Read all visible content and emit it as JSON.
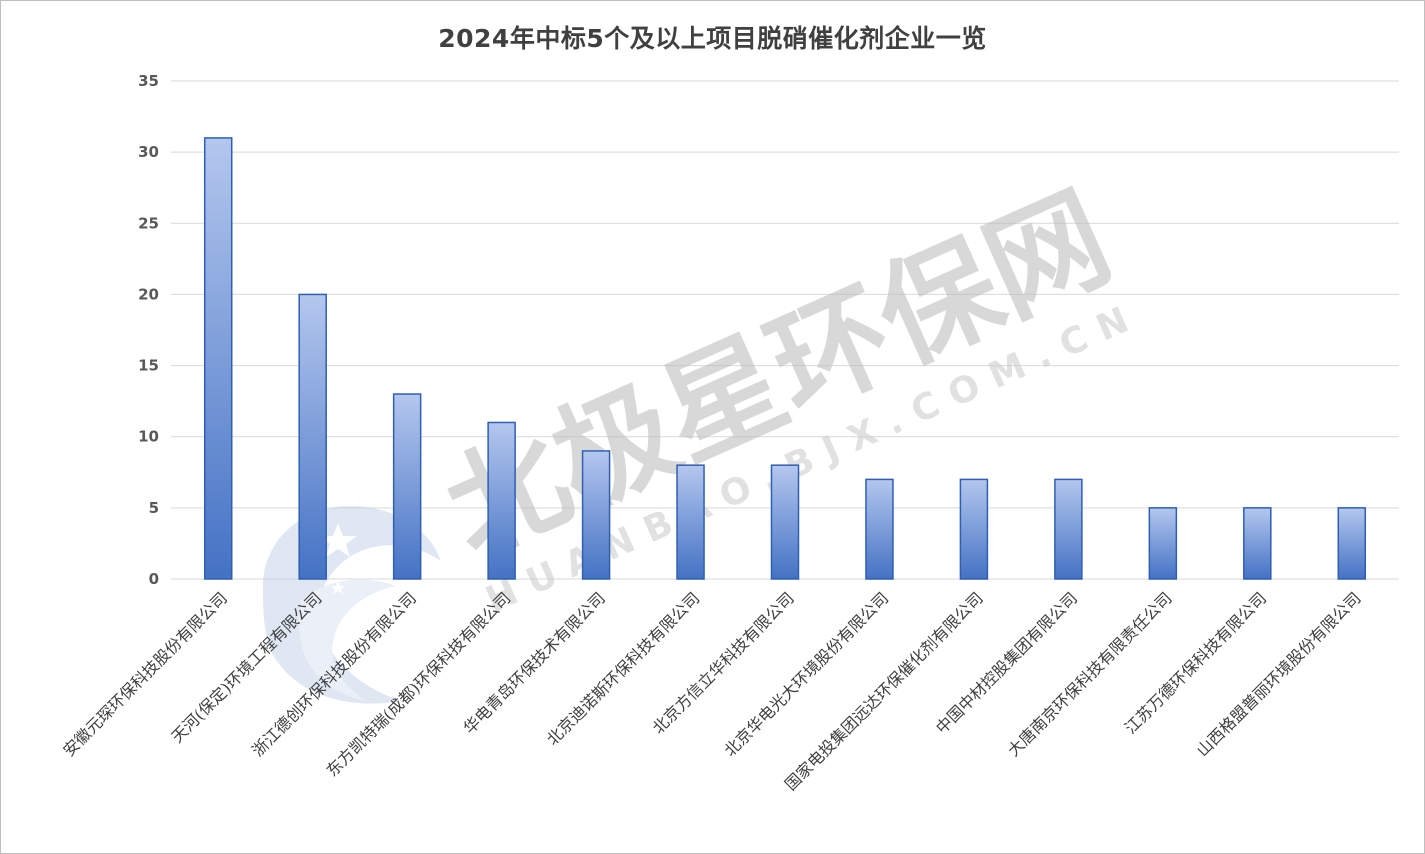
{
  "chart_data": {
    "type": "bar",
    "title": "2024年中标5个及以上项目脱硝催化剂企业一览",
    "xlabel": "",
    "ylabel": "",
    "ylim": [
      0,
      35
    ],
    "yticks": [
      0,
      5,
      10,
      15,
      20,
      25,
      30,
      35
    ],
    "grid": true,
    "categories": [
      "安徽元琛环保科技股份有限公司",
      "天河(保定)环境工程有限公司",
      "浙江德创环保科技股份有限公司",
      "东方凯特瑞(成都)环保科技有限公司",
      "华电青岛环保技术有限公司",
      "北京迪诺斯环保科技有限公司",
      "北京方信立华科技有限公司",
      "北京华电光大环境股份有限公司",
      "国家电投集团远达环保催化剂有限公司",
      "中国中材控股集团有限公司",
      "大唐南京环保科技有限责任公司",
      "江苏万德环保科技有限公司",
      "山西格盟普丽环境股份有限公司"
    ],
    "values": [
      31,
      20,
      13,
      11,
      9,
      8,
      8,
      7,
      7,
      7,
      5,
      5,
      5
    ],
    "colors": {
      "bar_top": "#b4c7ee",
      "bar_bottom": "#4472c4",
      "bar_stroke": "#2f5fb3",
      "grid": "#d9d9d9"
    }
  },
  "watermark": {
    "main": "北极星环保网",
    "sub": "HUANBAO.BJX.COM.CN"
  }
}
